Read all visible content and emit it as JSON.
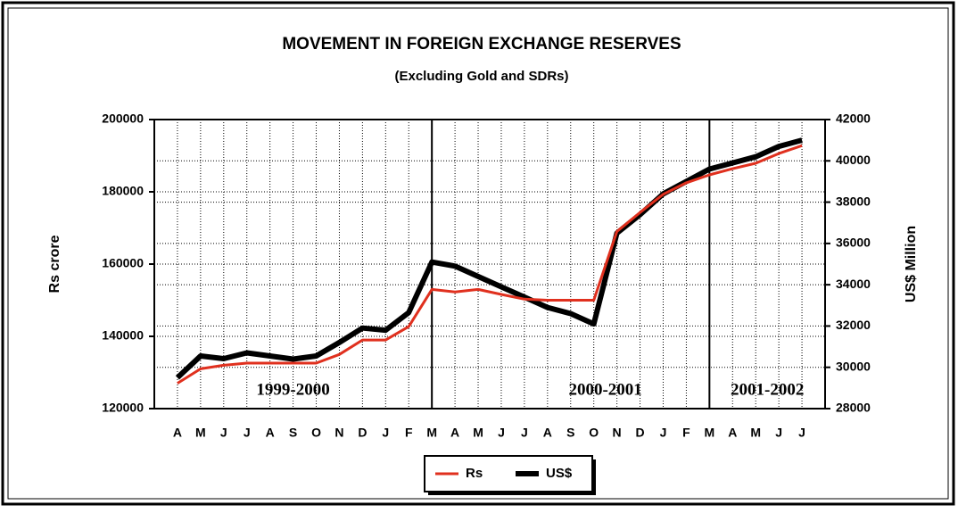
{
  "chart_data": {
    "type": "line",
    "title": "MOVEMENT IN FOREIGN EXCHANGE RESERVES",
    "subtitle": "(Excluding Gold and SDRs)",
    "y_label": "Rs crore",
    "y2_label": "US$ Million",
    "categories": [
      "A",
      "M",
      "J",
      "J",
      "A",
      "S",
      "O",
      "N",
      "D",
      "J",
      "F",
      "M",
      "A",
      "M",
      "J",
      "J",
      "A",
      "S",
      "O",
      "N",
      "D",
      "J",
      "F",
      "M",
      "A",
      "M",
      "J",
      "J"
    ],
    "series": [
      {
        "name": "Rs",
        "color": "#e0301e",
        "values": [
          127000,
          131000,
          132000,
          132600,
          132600,
          132600,
          132600,
          135000,
          139000,
          139000,
          142700,
          153000,
          152300,
          153000,
          151600,
          150300,
          150000,
          150000,
          150000,
          169000,
          174300,
          179300,
          182500,
          184700,
          186400,
          187900,
          190600,
          192800
        ]
      },
      {
        "name": "US$",
        "color": "#000000",
        "axis": "y2",
        "values": [
          29500,
          30550,
          30420,
          30700,
          30550,
          30400,
          30550,
          31200,
          31900,
          31800,
          32650,
          35100,
          34900,
          34400,
          33900,
          33400,
          32900,
          32600,
          32100,
          36500,
          37400,
          38400,
          39000,
          39600,
          39900,
          40200,
          40700,
          41000
        ]
      }
    ],
    "ylim": [
      120000,
      200000
    ],
    "yticks": [
      120000,
      140000,
      160000,
      180000,
      200000
    ],
    "y2lim": [
      28000,
      42000
    ],
    "y2ticks": [
      28000,
      30000,
      32000,
      34000,
      36000,
      38000,
      40000,
      42000
    ],
    "grid": true,
    "legend": "bottom",
    "dividers": [
      11,
      23
    ],
    "annotations": [
      {
        "text": "1999-2000",
        "at": 5
      },
      {
        "text": "2000-2001",
        "at": 18.5
      },
      {
        "text": "2001-2002",
        "at": 25.5
      }
    ]
  }
}
